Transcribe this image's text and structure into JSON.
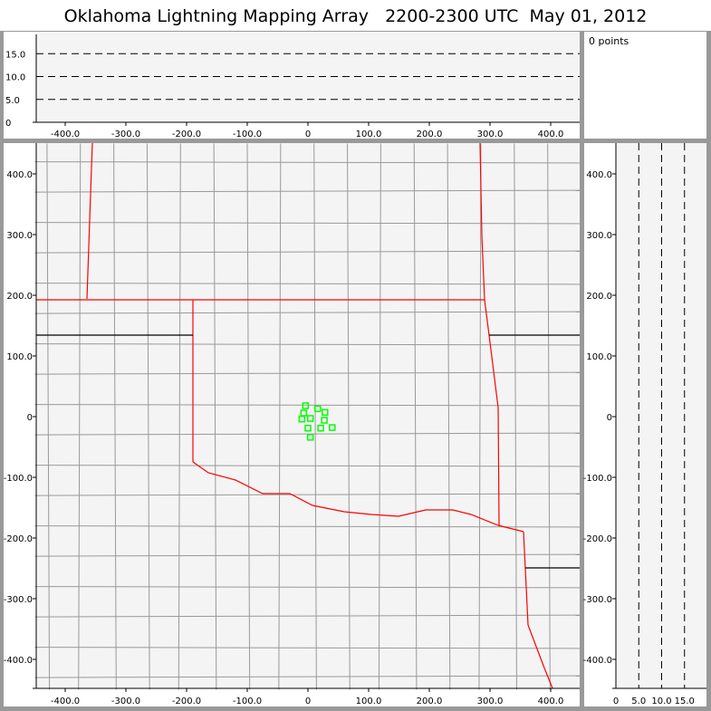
{
  "title": "Oklahoma Lightning Mapping Array   2200-2300 UTC  May 01, 2012",
  "points_label": "0 points",
  "colors": {
    "background": "#f4f4f4",
    "state_border": "#ff0000",
    "county_border": "#999999",
    "station": "#00ff00",
    "frame": "#999999"
  },
  "chart_data": [
    {
      "type": "scatter",
      "panel": "altitude-vs-east-west",
      "xlim": [
        -450,
        450
      ],
      "ylim": [
        0,
        20
      ],
      "xticks": [
        "-400.0",
        "-300.0",
        "-200.0",
        "-100.0",
        "0",
        "100.0",
        "200.0",
        "300.0",
        "400.0"
      ],
      "yticks": [
        "0",
        "5.0",
        "10.0",
        "15.0"
      ],
      "dashed_gridlines": [
        5,
        10,
        15
      ],
      "points": []
    },
    {
      "type": "scatter",
      "panel": "plan-view-map",
      "xlim": [
        -450,
        450
      ],
      "ylim": [
        -450,
        450
      ],
      "xticks": [
        "-400.0",
        "-300.0",
        "-200.0",
        "-100.0",
        "0",
        "100.0",
        "200.0",
        "300.0",
        "400.0"
      ],
      "yticks": [
        "-400.0",
        "-300.0",
        "-200.0",
        "-100.0",
        "0",
        "100.0",
        "200.0",
        "300.0",
        "400.0"
      ],
      "stations": [
        [
          -4,
          18
        ],
        [
          -7,
          6
        ],
        [
          16,
          13
        ],
        [
          28,
          7
        ],
        [
          -10,
          -4
        ],
        [
          4,
          -3
        ],
        [
          27,
          -6
        ],
        [
          0,
          -19
        ],
        [
          21,
          -19
        ],
        [
          40,
          -18
        ],
        [
          4,
          -34
        ]
      ],
      "points": []
    },
    {
      "type": "scatter",
      "panel": "north-south-vs-altitude",
      "xlim": [
        0,
        20
      ],
      "ylim": [
        -450,
        450
      ],
      "xticks": [
        "0",
        "5.0",
        "10.0",
        "15.0"
      ],
      "yticks": [
        "-400.0",
        "-300.0",
        "-200.0",
        "-100.0",
        "0",
        "100.0",
        "200.0",
        "300.0",
        "400.0"
      ],
      "dashed_gridlines": [
        5,
        10,
        15
      ],
      "points": []
    }
  ]
}
